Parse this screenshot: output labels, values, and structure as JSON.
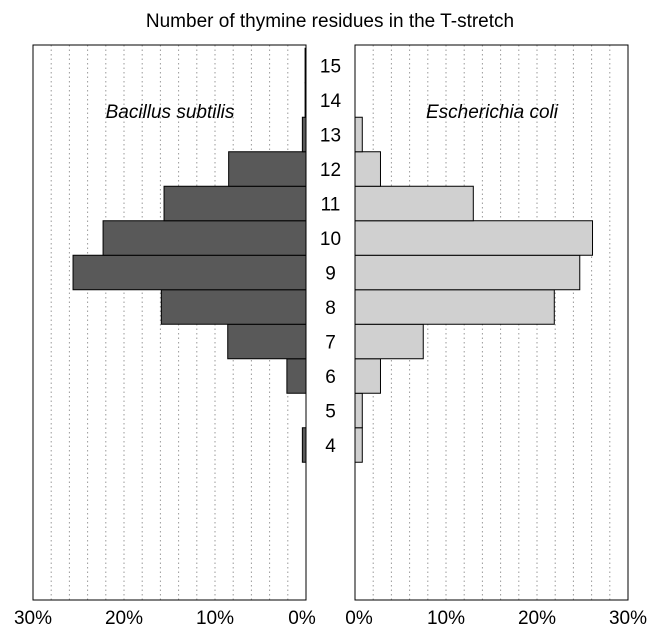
{
  "chart_data": {
    "type": "bar",
    "orientation": "horizontal",
    "layout": "back-to-back",
    "title": "Number of thymine residues in the T-stretch",
    "categories": [
      "4",
      "5",
      "6",
      "7",
      "8",
      "9",
      "10",
      "11",
      "12",
      "13",
      "14",
      "15"
    ],
    "xlim": [
      0,
      30
    ],
    "x_ticks": [
      "30%",
      "20%",
      "10%",
      "0%",
      "0%",
      "10%",
      "20%",
      "30%"
    ],
    "grid": true,
    "panels": [
      {
        "name": "Bacillus subtilis",
        "side": "left",
        "color": "#595959",
        "values": [
          0.4,
          0,
          2.1,
          8.6,
          15.9,
          25.6,
          22.3,
          15.6,
          8.5,
          0.4,
          0.1,
          0.1
        ]
      },
      {
        "name": "Escherichia coli",
        "side": "right",
        "color": "#d0d0d0",
        "values": [
          0.8,
          0.8,
          2.8,
          7.5,
          21.9,
          24.7,
          26.1,
          13.0,
          2.8,
          0.8,
          0,
          0
        ]
      }
    ]
  }
}
